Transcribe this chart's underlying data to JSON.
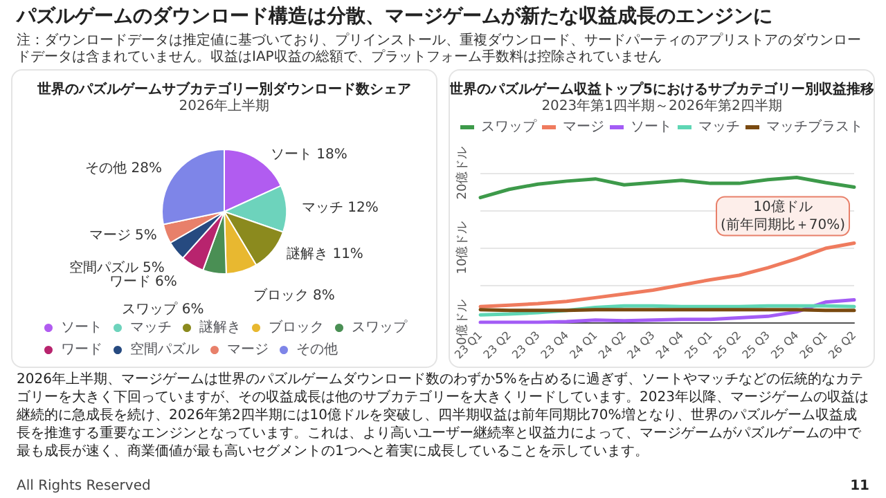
{
  "chart_data": [
    {
      "type": "pie",
      "title": "世界のパズルゲームサブカテゴリー別ダウンロード数シェア",
      "subtitle": "2026年上半期",
      "categories": [
        "ソート",
        "マッチ",
        "謎解き",
        "ブロック",
        "スワップ",
        "ワード",
        "空間パズル",
        "マージ",
        "その他"
      ],
      "values": [
        18,
        12,
        11,
        8,
        6,
        6,
        5,
        5,
        28
      ],
      "value_labels": [
        "18%",
        "12%",
        "11%",
        "8%",
        "6%",
        "6%",
        "5%",
        "5%",
        "28%"
      ],
      "colors": [
        "#b15cf0",
        "#6dd3bc",
        "#8b8a1e",
        "#e8b830",
        "#4a8f54",
        "#b8246e",
        "#264a80",
        "#e8806a",
        "#7e85e8"
      ],
      "legend": "bottom"
    },
    {
      "type": "line",
      "title": "世界のパズルゲーム収益トップ5におけるサブカテゴリー別収益推移",
      "subtitle": "2023年第1四半期～2026年第2四半期",
      "categories": [
        "23 Q1",
        "23 Q2",
        "23 Q3",
        "23 Q4",
        "24 Q1",
        "24 Q2",
        "24 Q3",
        "24 Q4",
        "25 Q1",
        "25 Q2",
        "25 Q3",
        "25 Q4",
        "26 Q1",
        "26 Q2"
      ],
      "series": [
        {
          "name": "スワップ",
          "color": "#3d9a4a",
          "values": [
            16.7,
            17.8,
            18.5,
            18.9,
            19.2,
            18.4,
            18.7,
            19.0,
            18.6,
            18.6,
            19.1,
            19.4,
            18.7,
            18.1
          ]
        },
        {
          "name": "マージ",
          "color": "#ef7b5e",
          "values": [
            2.1,
            2.3,
            2.5,
            2.8,
            3.3,
            3.8,
            4.3,
            5.0,
            5.7,
            6.3,
            7.3,
            8.5,
            9.9,
            10.6
          ]
        },
        {
          "name": "ソート",
          "color": "#a35cf5",
          "values": [
            0,
            0,
            0,
            0.1,
            0.3,
            0.2,
            0.3,
            0.4,
            0.4,
            0.6,
            0.8,
            1.4,
            2.7,
            3.0
          ]
        },
        {
          "name": "マッチ",
          "color": "#5ed6b4",
          "values": [
            1.0,
            1.1,
            1.3,
            1.6,
            2.0,
            2.2,
            2.2,
            2.1,
            2.1,
            2.1,
            2.2,
            2.2,
            2.2,
            2.1
          ]
        },
        {
          "name": "マッチブラスト",
          "color": "#7a4a10",
          "values": [
            1.7,
            1.6,
            1.6,
            1.6,
            1.7,
            1.7,
            1.7,
            1.7,
            1.7,
            1.7,
            1.7,
            1.7,
            1.6,
            1.6
          ]
        }
      ],
      "ylim": [
        0,
        20
      ],
      "yticks": [
        {
          "value": 0,
          "label": "0億ドル"
        },
        {
          "value": 5,
          "label": null
        },
        {
          "value": 10,
          "label": "10億ドル"
        },
        {
          "value": 15,
          "label": null
        },
        {
          "value": 20,
          "label": "20億ドル"
        }
      ],
      "grid": "y",
      "legend": "top",
      "marker": "none",
      "annotations": [
        {
          "text": "10億ドル\n(前年同期比＋70%)",
          "x": "26 Q2",
          "y": 10.6
        }
      ]
    },
    {
      "type": "other",
      "title": "パズルゲームのダウンロード構造は分散、マージゲームが新たな収益成長のエンジンに",
      "annotations": [
        "注：ダウンロードデータは推定値に基づいており、プリインストール、重複ダウンロード、サードパーティのアプリストアのダウンロードデータは含まれていません。収益はIAP収益の総額で、プラットフォーム手数料は控除されていません",
        "2026年上半期、マージゲームは世界のパズルゲームダウンロード数のわずか5%を占めるに過ぎず、ソートやマッチなどの伝統的なカテゴリーを大きく下回っていますが、その収益成長は他のサブカテゴリーを大きくリードしています。2023年以降、マージゲームの収益は継続的に急成長を続け、2026年第2四半期には10億ドルを突破し、四半期収益は前年同期比70%増となり、世界のパズルゲーム収益成長を推進する重要なエンジンとなっています。これは、より高いユーザー継続率と収益力によって、マージゲームがパズルゲームの中で最も成長が速く、商業価値が最も高いセグメントの1つへと着実に成長していることを示しています。",
        "All Rights Reserved",
        "11"
      ]
    }
  ]
}
